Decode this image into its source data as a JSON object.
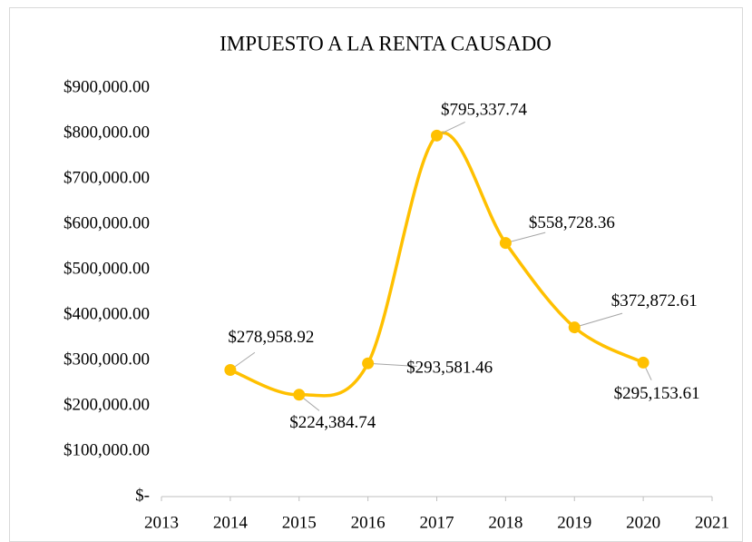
{
  "chart_data": {
    "type": "line",
    "title": "IMPUESTO A LA RENTA CAUSADO",
    "x": [
      2014,
      2015,
      2016,
      2017,
      2018,
      2019,
      2020
    ],
    "series": [
      {
        "color": "#FFC000",
        "values": [
          278958.92,
          224384.74,
          293581.46,
          795337.74,
          558728.36,
          372872.61,
          295153.61
        ],
        "value_labels": [
          "$278,958.92",
          "$224,384.74",
          "$293,581.46",
          "$795,337.74",
          "$558,728.36",
          "$372,872.61",
          "$295,153.61"
        ]
      }
    ],
    "xlim": [
      2013,
      2021
    ],
    "xticks": [
      2013,
      2014,
      2015,
      2016,
      2017,
      2018,
      2019,
      2020,
      2021
    ],
    "ylim": [
      0,
      900000
    ],
    "yticks": [
      {
        "value": 0,
        "label": "$-"
      },
      {
        "value": 100000,
        "label": "$100,000.00"
      },
      {
        "value": 200000,
        "label": "$200,000.00"
      },
      {
        "value": 300000,
        "label": "$300,000.00"
      },
      {
        "value": 400000,
        "label": "$400,000.00"
      },
      {
        "value": 500000,
        "label": "$500,000.00"
      },
      {
        "value": 600000,
        "label": "$600,000.00"
      },
      {
        "value": 700000,
        "label": "$700,000.00"
      },
      {
        "value": 800000,
        "label": "$800,000.00"
      },
      {
        "value": 900000,
        "label": "$900,000.00"
      }
    ],
    "grid": false,
    "smooth": true
  }
}
